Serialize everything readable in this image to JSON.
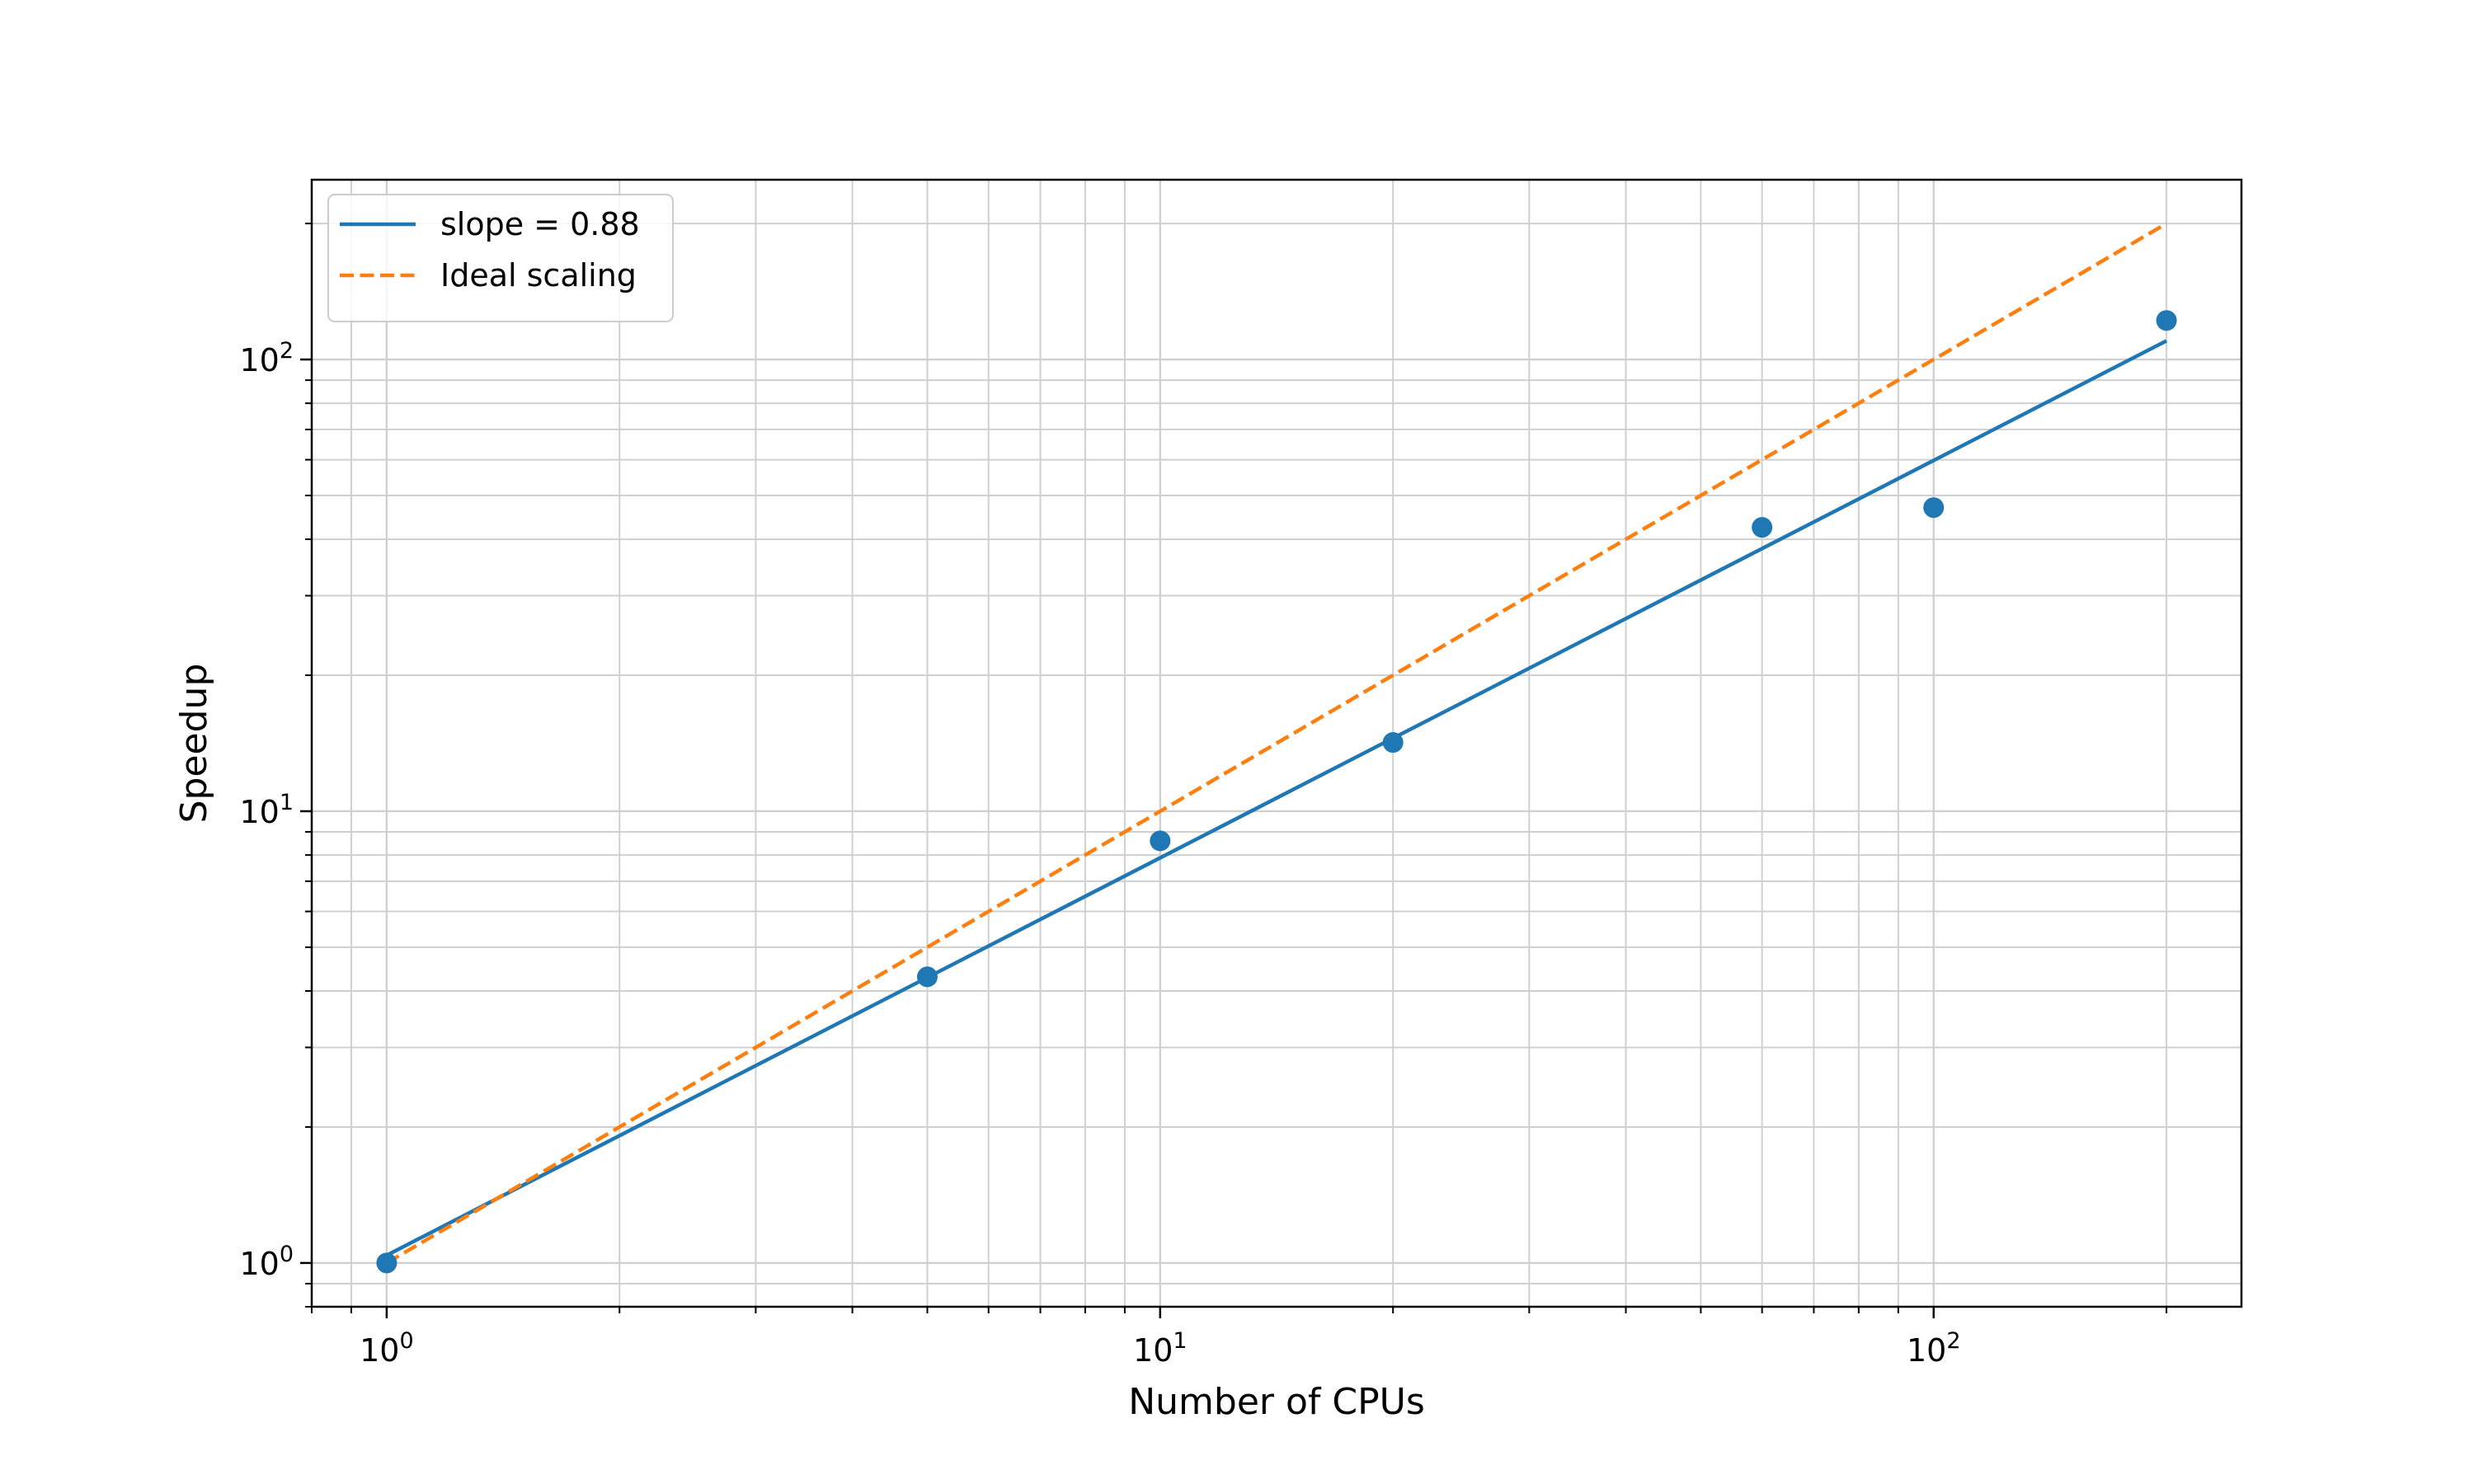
{
  "chart_data": {
    "type": "scatter",
    "title": "",
    "xlabel": "Number of CPUs",
    "ylabel": "Speedup",
    "xscale": "log",
    "yscale": "log",
    "xlim": [
      0.8,
      250
    ],
    "ylim": [
      0.8,
      250
    ],
    "grid": "major and minor",
    "legend_placement": "top-left",
    "x_ticks": [
      {
        "value": 1,
        "base": "10",
        "exp": "0"
      },
      {
        "value": 10,
        "base": "10",
        "exp": "1"
      },
      {
        "value": 100,
        "base": "10",
        "exp": "2"
      }
    ],
    "y_ticks": [
      {
        "value": 1,
        "base": "10",
        "exp": "0"
      },
      {
        "value": 10,
        "base": "10",
        "exp": "1"
      },
      {
        "value": 100,
        "base": "10",
        "exp": "2"
      }
    ],
    "series": [
      {
        "kind": "points",
        "color": "#1f77b4",
        "x": [
          1,
          5,
          10,
          20,
          60,
          100,
          200
        ],
        "y": [
          1.0,
          4.3,
          8.6,
          14.2,
          42.5,
          47.0,
          122.0
        ]
      },
      {
        "kind": "line",
        "name": "slope = 0.88",
        "color": "#1f77b4",
        "style": "solid",
        "x": [
          1,
          200
        ],
        "y": [
          1.04,
          110.0
        ]
      },
      {
        "kind": "line",
        "name": "Ideal scaling",
        "color": "#ff7f0e",
        "style": "dashed",
        "x": [
          1,
          200
        ],
        "y": [
          1,
          200
        ]
      }
    ]
  }
}
